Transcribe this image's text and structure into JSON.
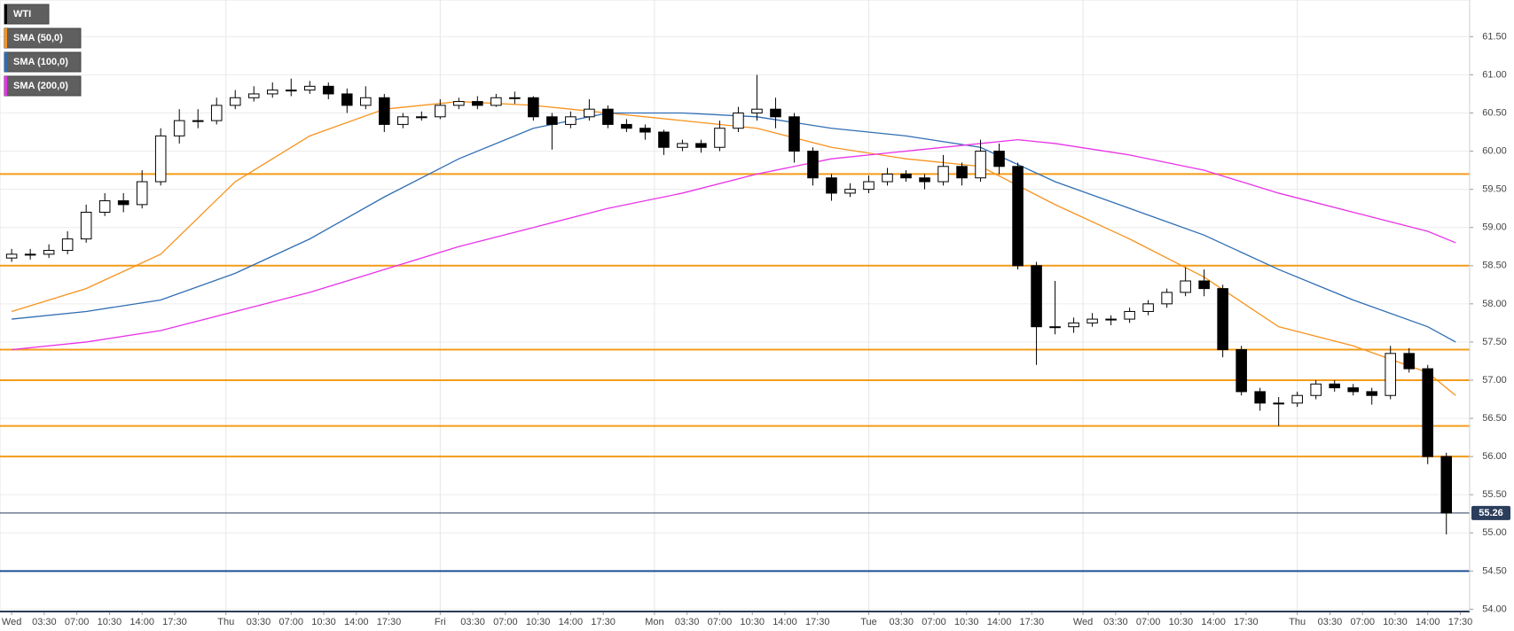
{
  "chart_data": {
    "type": "candlestick",
    "name": "WTI",
    "name_color": "#000000",
    "up_color": "#ffffff",
    "down_color": "#000000",
    "x": [
      0,
      2,
      4,
      6,
      8,
      10,
      12,
      14,
      16,
      18,
      20,
      22,
      24,
      26,
      28,
      30,
      32,
      34,
      36,
      38,
      40,
      42,
      44,
      46,
      48,
      50,
      52,
      54,
      56,
      58,
      60,
      62,
      64,
      66,
      68,
      70,
      72,
      74,
      76,
      78,
      80,
      82,
      84,
      86,
      88,
      90,
      92,
      94,
      96,
      98,
      100,
      102,
      104,
      106,
      108,
      110,
      112,
      114,
      116,
      118,
      120,
      122,
      124,
      126,
      128,
      130,
      132,
      134,
      136,
      138,
      140,
      142,
      144,
      146,
      148,
      150,
      152,
      154
    ],
    "ohlc": [
      [
        58.6,
        58.72,
        58.55,
        58.65
      ],
      [
        58.65,
        58.72,
        58.58,
        58.65
      ],
      [
        58.65,
        58.78,
        58.6,
        58.7
      ],
      [
        58.7,
        58.95,
        58.65,
        58.85
      ],
      [
        58.85,
        59.3,
        58.8,
        59.2
      ],
      [
        59.2,
        59.45,
        59.15,
        59.35
      ],
      [
        59.35,
        59.45,
        59.2,
        59.3
      ],
      [
        59.3,
        59.75,
        59.25,
        59.6
      ],
      [
        59.6,
        60.3,
        59.55,
        60.2
      ],
      [
        60.2,
        60.55,
        60.1,
        60.4
      ],
      [
        60.4,
        60.55,
        60.3,
        60.4
      ],
      [
        60.4,
        60.7,
        60.35,
        60.6
      ],
      [
        60.6,
        60.8,
        60.55,
        60.7
      ],
      [
        60.7,
        60.85,
        60.65,
        60.75
      ],
      [
        60.75,
        60.9,
        60.7,
        60.8
      ],
      [
        60.8,
        60.95,
        60.72,
        60.8
      ],
      [
        60.8,
        60.92,
        60.75,
        60.85
      ],
      [
        60.85,
        60.9,
        60.68,
        60.75
      ],
      [
        60.75,
        60.82,
        60.5,
        60.6
      ],
      [
        60.6,
        60.85,
        60.55,
        60.7
      ],
      [
        60.7,
        60.75,
        60.25,
        60.35
      ],
      [
        60.35,
        60.5,
        60.3,
        60.45
      ],
      [
        60.45,
        60.52,
        60.4,
        60.45
      ],
      [
        60.45,
        60.68,
        60.42,
        60.6
      ],
      [
        60.6,
        60.7,
        60.55,
        60.65
      ],
      [
        60.65,
        60.72,
        60.55,
        60.6
      ],
      [
        60.6,
        60.75,
        60.58,
        60.7
      ],
      [
        60.7,
        60.78,
        60.62,
        60.7
      ],
      [
        60.7,
        60.72,
        60.4,
        60.45
      ],
      [
        60.45,
        60.5,
        60.02,
        60.35
      ],
      [
        60.35,
        60.52,
        60.3,
        60.45
      ],
      [
        60.45,
        60.68,
        60.4,
        60.55
      ],
      [
        60.55,
        60.6,
        60.3,
        60.35
      ],
      [
        60.35,
        60.42,
        60.25,
        60.3
      ],
      [
        60.3,
        60.35,
        60.15,
        60.25
      ],
      [
        60.25,
        60.28,
        59.95,
        60.05
      ],
      [
        60.05,
        60.15,
        60.0,
        60.1
      ],
      [
        60.1,
        60.15,
        59.98,
        60.05
      ],
      [
        60.05,
        60.4,
        60.0,
        60.3
      ],
      [
        60.3,
        60.58,
        60.25,
        60.5
      ],
      [
        60.5,
        61.0,
        60.4,
        60.55
      ],
      [
        60.55,
        60.7,
        60.3,
        60.45
      ],
      [
        60.45,
        60.5,
        59.85,
        60.0
      ],
      [
        60.0,
        60.05,
        59.55,
        59.65
      ],
      [
        59.65,
        59.7,
        59.35,
        59.45
      ],
      [
        59.45,
        59.58,
        59.4,
        59.5
      ],
      [
        59.5,
        59.68,
        59.45,
        59.6
      ],
      [
        59.6,
        59.78,
        59.55,
        59.7
      ],
      [
        59.7,
        59.75,
        59.6,
        59.65
      ],
      [
        59.65,
        59.7,
        59.5,
        59.6
      ],
      [
        59.6,
        59.95,
        59.55,
        59.8
      ],
      [
        59.8,
        59.85,
        59.55,
        59.65
      ],
      [
        59.65,
        60.15,
        59.6,
        60.0
      ],
      [
        60.0,
        60.1,
        59.7,
        59.8
      ],
      [
        59.8,
        59.85,
        58.45,
        58.5
      ],
      [
        58.5,
        58.55,
        57.2,
        57.7
      ],
      [
        57.7,
        58.3,
        57.6,
        57.7
      ],
      [
        57.7,
        57.82,
        57.62,
        57.75
      ],
      [
        57.75,
        57.88,
        57.7,
        57.8
      ],
      [
        57.8,
        57.85,
        57.72,
        57.8
      ],
      [
        57.8,
        57.95,
        57.75,
        57.9
      ],
      [
        57.9,
        58.05,
        57.85,
        58.0
      ],
      [
        58.0,
        58.2,
        57.95,
        58.15
      ],
      [
        58.15,
        58.48,
        58.1,
        58.3
      ],
      [
        58.3,
        58.45,
        58.1,
        58.2
      ],
      [
        58.2,
        58.25,
        57.3,
        57.4
      ],
      [
        57.4,
        57.45,
        56.8,
        56.85
      ],
      [
        56.85,
        56.9,
        56.6,
        56.7
      ],
      [
        56.7,
        56.78,
        56.4,
        56.7
      ],
      [
        56.7,
        56.85,
        56.65,
        56.8
      ],
      [
        56.8,
        57.0,
        56.75,
        56.95
      ],
      [
        56.95,
        57.0,
        56.85,
        56.9
      ],
      [
        56.9,
        56.95,
        56.8,
        56.85
      ],
      [
        56.85,
        56.9,
        56.68,
        56.8
      ],
      [
        56.8,
        57.45,
        56.75,
        57.35
      ],
      [
        57.35,
        57.42,
        57.1,
        57.15
      ],
      [
        57.15,
        57.2,
        55.9,
        56.0
      ],
      [
        56.0,
        56.05,
        54.98,
        55.26
      ]
    ],
    "overlays": [
      {
        "name": "SMA (50,0)",
        "color": "#f7931e",
        "x": [
          0,
          8,
          16,
          24,
          32,
          40,
          48,
          56,
          64,
          72,
          80,
          88,
          96,
          104,
          112,
          120,
          128,
          136,
          144,
          152,
          155
        ],
        "values": [
          57.9,
          58.2,
          58.65,
          59.6,
          60.2,
          60.55,
          60.65,
          60.6,
          60.5,
          60.4,
          60.3,
          60.05,
          59.9,
          59.8,
          59.3,
          58.85,
          58.35,
          57.7,
          57.45,
          57.1,
          56.8
        ]
      },
      {
        "name": "SMA (100,0)",
        "color": "#2f6db3",
        "x": [
          0,
          8,
          16,
          24,
          32,
          40,
          48,
          56,
          64,
          72,
          80,
          88,
          96,
          104,
          112,
          120,
          128,
          136,
          144,
          152,
          155
        ],
        "values": [
          57.8,
          57.9,
          58.05,
          58.4,
          58.85,
          59.4,
          59.9,
          60.3,
          60.5,
          60.5,
          60.45,
          60.3,
          60.2,
          60.05,
          59.6,
          59.25,
          58.9,
          58.45,
          58.05,
          57.7,
          57.5
        ]
      },
      {
        "name": "SMA (200,0)",
        "color": "#e833e8",
        "x": [
          0,
          8,
          16,
          24,
          32,
          40,
          48,
          56,
          64,
          72,
          80,
          88,
          96,
          104,
          108,
          112,
          120,
          128,
          136,
          144,
          152,
          155
        ],
        "values": [
          57.4,
          57.5,
          57.65,
          57.9,
          58.15,
          58.45,
          58.75,
          59.0,
          59.25,
          59.45,
          59.7,
          59.9,
          60.0,
          60.1,
          60.15,
          60.1,
          59.95,
          59.75,
          59.45,
          59.2,
          58.95,
          58.8
        ]
      }
    ],
    "levels": [
      {
        "value": 59.7,
        "color": "#f39c1a"
      },
      {
        "value": 58.5,
        "color": "#f39c1a"
      },
      {
        "value": 57.4,
        "color": "#f39c1a"
      },
      {
        "value": 57.0,
        "color": "#f39c1a"
      },
      {
        "value": 56.4,
        "color": "#f39c1a"
      },
      {
        "value": 56.0,
        "color": "#f39c1a"
      },
      {
        "value": 54.5,
        "color": "#1c4f94"
      }
    ],
    "last_price": 55.26,
    "last_price_color": "#2b3e5c",
    "xlim": [
      -1.25,
      156.5
    ],
    "xticks": [
      {
        "value": 0,
        "label": "Wed"
      },
      {
        "value": 3.5,
        "label": "03:30"
      },
      {
        "value": 7,
        "label": "07:00"
      },
      {
        "value": 10.5,
        "label": "10:30"
      },
      {
        "value": 14,
        "label": "14:00"
      },
      {
        "value": 17.5,
        "label": "17:30"
      },
      {
        "value": 23,
        "label": "Thu"
      },
      {
        "value": 26.5,
        "label": "03:30"
      },
      {
        "value": 30,
        "label": "07:00"
      },
      {
        "value": 33.5,
        "label": "10:30"
      },
      {
        "value": 37,
        "label": "14:00"
      },
      {
        "value": 40.5,
        "label": "17:30"
      },
      {
        "value": 46,
        "label": "Fri"
      },
      {
        "value": 49.5,
        "label": "03:30"
      },
      {
        "value": 53,
        "label": "07:00"
      },
      {
        "value": 56.5,
        "label": "10:30"
      },
      {
        "value": 60,
        "label": "14:00"
      },
      {
        "value": 63.5,
        "label": "17:30"
      },
      {
        "value": 69,
        "label": "Mon"
      },
      {
        "value": 72.5,
        "label": "03:30"
      },
      {
        "value": 76,
        "label": "07:00"
      },
      {
        "value": 79.5,
        "label": "10:30"
      },
      {
        "value": 83,
        "label": "14:00"
      },
      {
        "value": 86.5,
        "label": "17:30"
      },
      {
        "value": 92,
        "label": "Tue"
      },
      {
        "value": 95.5,
        "label": "03:30"
      },
      {
        "value": 99,
        "label": "07:00"
      },
      {
        "value": 102.5,
        "label": "10:30"
      },
      {
        "value": 106,
        "label": "14:00"
      },
      {
        "value": 109.5,
        "label": "17:30"
      },
      {
        "value": 115,
        "label": "Wed"
      },
      {
        "value": 118.5,
        "label": "03:30"
      },
      {
        "value": 122,
        "label": "07:00"
      },
      {
        "value": 125.5,
        "label": "10:30"
      },
      {
        "value": 129,
        "label": "14:00"
      },
      {
        "value": 132.5,
        "label": "17:30"
      },
      {
        "value": 138,
        "label": "Thu"
      },
      {
        "value": 141.5,
        "label": "03:30"
      },
      {
        "value": 145,
        "label": "07:00"
      },
      {
        "value": 148.5,
        "label": "10:30"
      },
      {
        "value": 152,
        "label": "14:00"
      },
      {
        "value": 155.5,
        "label": "17:30"
      }
    ],
    "ylim": [
      53.97,
      61.98
    ],
    "yticks": [
      {
        "value": 54,
        "label": "54.00"
      },
      {
        "value": 54.5,
        "label": "54.50"
      },
      {
        "value": 55,
        "label": "55.00"
      },
      {
        "value": 55.5,
        "label": "55.50"
      },
      {
        "value": 56,
        "label": "56.00"
      },
      {
        "value": 56.5,
        "label": "56.50"
      },
      {
        "value": 57,
        "label": "57.00"
      },
      {
        "value": 57.5,
        "label": "57.50"
      },
      {
        "value": 58,
        "label": "58.00"
      },
      {
        "value": 58.5,
        "label": "58.50"
      },
      {
        "value": 59,
        "label": "59.00"
      },
      {
        "value": 59.5,
        "label": "59.50"
      },
      {
        "value": 60,
        "label": "60.00"
      },
      {
        "value": 60.5,
        "label": "60.50"
      },
      {
        "value": 61,
        "label": "61.00"
      },
      {
        "value": 61.5,
        "label": "61.50"
      }
    ],
    "grid": true
  }
}
